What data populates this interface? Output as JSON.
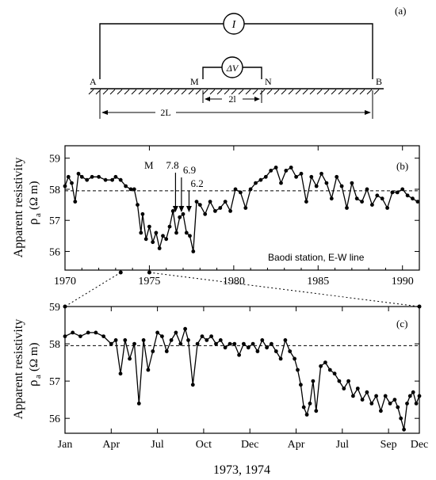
{
  "schematic": {
    "panel_label": "(a)",
    "current_label": "I",
    "voltage_label": "ΔV",
    "electrodes": [
      "A",
      "M",
      "N",
      "B"
    ],
    "outer_spacing_label": "2L",
    "inner_spacing_label": "2l"
  },
  "chart_data": [
    {
      "type": "line",
      "panel_label": "(b)",
      "title": "",
      "xlabel": "",
      "ylabel": "Apparent resistivity",
      "ylabel_symbol": "ρ",
      "ylabel_subscript": "a",
      "ylabel_unit": "(Ω m)",
      "xlim": [
        1970,
        1991
      ],
      "ylim": [
        55.4,
        59.4
      ],
      "x_ticks": [
        1970,
        1975,
        1980,
        1985,
        1990
      ],
      "y_ticks": [
        56,
        57,
        58,
        59
      ],
      "grid": false,
      "reference_line": 57.95,
      "annotation_station": "Baodi station, E-W line",
      "event_prefix": "M",
      "events": [
        {
          "label": "7.8",
          "x": 1976.55
        },
        {
          "label": "6.9",
          "x": 1976.9
        },
        {
          "label": "6.2",
          "x": 1977.35
        }
      ],
      "series": [
        {
          "x": [
            1970.0,
            1970.2,
            1970.4,
            1970.6,
            1970.8,
            1971.0,
            1971.3,
            1971.6,
            1972.0,
            1972.4,
            1972.8,
            1973.0,
            1973.3,
            1973.6,
            1973.9,
            1974.1,
            1974.3,
            1974.5,
            1974.6,
            1974.8,
            1975.0,
            1975.2,
            1975.4,
            1975.6,
            1975.8,
            1976.0,
            1976.2,
            1976.4,
            1976.6,
            1976.8,
            1977.0,
            1977.2,
            1977.4,
            1977.6,
            1977.8,
            1978.0,
            1978.3,
            1978.6,
            1978.9,
            1979.2,
            1979.5,
            1979.8,
            1980.1,
            1980.4,
            1980.7,
            1981.0,
            1981.3,
            1981.6,
            1981.9,
            1982.2,
            1982.5,
            1982.8,
            1983.1,
            1983.4,
            1983.7,
            1984.0,
            1984.3,
            1984.6,
            1984.9,
            1985.2,
            1985.5,
            1985.8,
            1986.1,
            1986.4,
            1986.7,
            1987.0,
            1987.3,
            1987.6,
            1987.9,
            1988.2,
            1988.5,
            1988.8,
            1989.1,
            1989.4,
            1989.7,
            1990.0,
            1990.3,
            1990.6,
            1990.9
          ],
          "y": [
            58.1,
            58.4,
            58.2,
            57.6,
            58.5,
            58.4,
            58.3,
            58.4,
            58.4,
            58.3,
            58.3,
            58.4,
            58.3,
            58.1,
            58.0,
            58.0,
            57.5,
            56.6,
            57.2,
            56.4,
            56.8,
            56.3,
            56.6,
            56.1,
            56.5,
            56.4,
            56.8,
            57.3,
            56.6,
            57.1,
            57.2,
            56.6,
            56.5,
            56.0,
            57.6,
            57.5,
            57.2,
            57.6,
            57.3,
            57.4,
            57.6,
            57.3,
            58.0,
            57.9,
            57.4,
            58.0,
            58.2,
            58.3,
            58.4,
            58.6,
            58.7,
            58.2,
            58.6,
            58.7,
            58.4,
            58.5,
            57.6,
            58.4,
            58.1,
            58.5,
            58.2,
            57.7,
            58.4,
            58.1,
            57.4,
            58.2,
            57.7,
            57.6,
            58.0,
            57.5,
            57.8,
            57.7,
            57.4,
            57.9,
            57.9,
            58.0,
            57.8,
            57.7,
            57.6
          ]
        }
      ]
    },
    {
      "type": "line",
      "panel_label": "(c)",
      "title": "",
      "xlabel": "1973, 1974",
      "ylabel": "Apparent resistivity",
      "ylabel_symbol": "ρ",
      "ylabel_subscript": "a",
      "ylabel_unit": "(Ω m)",
      "xlim": [
        0,
        23
      ],
      "ylim": [
        55.6,
        59.0
      ],
      "x_ticks": [
        0,
        3,
        6,
        9,
        12,
        15,
        18,
        21,
        23
      ],
      "x_tick_labels": [
        "Jan",
        "Apr",
        "Jul",
        "Oct",
        "Dec",
        "Apr",
        "Jul",
        "Sep",
        "Dec"
      ],
      "y_ticks": [
        56,
        57,
        58,
        59
      ],
      "grid": false,
      "reference_line": 57.95,
      "series": [
        {
          "x": [
            0.0,
            0.5,
            1.0,
            1.5,
            2.0,
            2.5,
            3.0,
            3.3,
            3.6,
            3.9,
            4.2,
            4.5,
            4.8,
            5.1,
            5.4,
            5.7,
            6.0,
            6.3,
            6.6,
            6.9,
            7.2,
            7.5,
            7.8,
            8.0,
            8.3,
            8.6,
            8.9,
            9.2,
            9.5,
            9.8,
            10.1,
            10.4,
            10.7,
            11.0,
            11.3,
            11.6,
            11.9,
            12.2,
            12.5,
            12.8,
            13.1,
            13.4,
            13.7,
            14.0,
            14.3,
            14.6,
            14.9,
            15.1,
            15.3,
            15.5,
            15.7,
            15.9,
            16.1,
            16.3,
            16.6,
            16.9,
            17.2,
            17.5,
            17.8,
            18.1,
            18.4,
            18.7,
            19.0,
            19.3,
            19.6,
            19.9,
            20.2,
            20.5,
            20.8,
            21.1,
            21.4,
            21.6,
            21.8,
            22.0,
            22.2,
            22.4,
            22.6,
            22.8,
            23.0
          ],
          "y": [
            58.2,
            58.3,
            58.2,
            58.3,
            58.3,
            58.2,
            58.0,
            58.1,
            57.2,
            58.1,
            57.6,
            58.0,
            56.4,
            58.1,
            57.3,
            57.8,
            58.3,
            58.2,
            57.8,
            58.1,
            58.3,
            58.0,
            58.4,
            58.1,
            56.9,
            58.0,
            58.2,
            58.1,
            58.2,
            58.0,
            58.1,
            57.9,
            58.0,
            58.0,
            57.7,
            58.0,
            57.9,
            58.0,
            57.8,
            58.1,
            57.9,
            58.0,
            57.8,
            57.6,
            58.1,
            57.8,
            57.6,
            57.3,
            56.9,
            56.3,
            56.1,
            56.4,
            57.0,
            56.2,
            57.4,
            57.5,
            57.3,
            57.2,
            57.0,
            56.8,
            57.0,
            56.6,
            56.8,
            56.5,
            56.7,
            56.4,
            56.6,
            56.2,
            56.6,
            56.4,
            56.5,
            56.3,
            56.0,
            55.7,
            56.4,
            56.6,
            56.7,
            56.4,
            56.6
          ]
        }
      ]
    }
  ]
}
